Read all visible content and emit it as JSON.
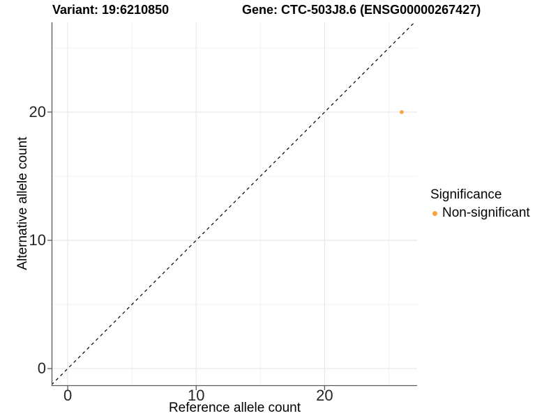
{
  "chart_data": {
    "type": "scatter",
    "title_variant": "Variant: 19:6210850",
    "title_gene": "Gene: CTC-503J8.6 (ENSG00000267427)",
    "xlabel": "Reference allele count",
    "ylabel": "Alternative allele count",
    "xlim": [
      -1.2,
      27.2
    ],
    "ylim": [
      -1.3,
      27.0
    ],
    "x_ticks": [
      0,
      10,
      20
    ],
    "y_ticks": [
      0,
      10,
      20
    ],
    "x_minor_ticks": [
      5,
      15,
      25
    ],
    "y_minor_ticks": [
      5,
      15,
      25
    ],
    "grid": true,
    "points": [
      {
        "x": 26,
        "y": 20,
        "series": "Non-significant"
      }
    ],
    "identity_line": {
      "slope": 1,
      "intercept": 0,
      "style": "dashed",
      "color": "#000000"
    },
    "legend": {
      "title": "Significance",
      "position": "right",
      "entries": [
        {
          "label": "Non-significant",
          "color": "#FAA23C"
        }
      ]
    },
    "colors": {
      "point": "#FAA23C",
      "grid_major": "#E8E8E8",
      "grid_minor": "#F2F2F2",
      "axis": "#595959",
      "tick_text": "#262626"
    }
  }
}
